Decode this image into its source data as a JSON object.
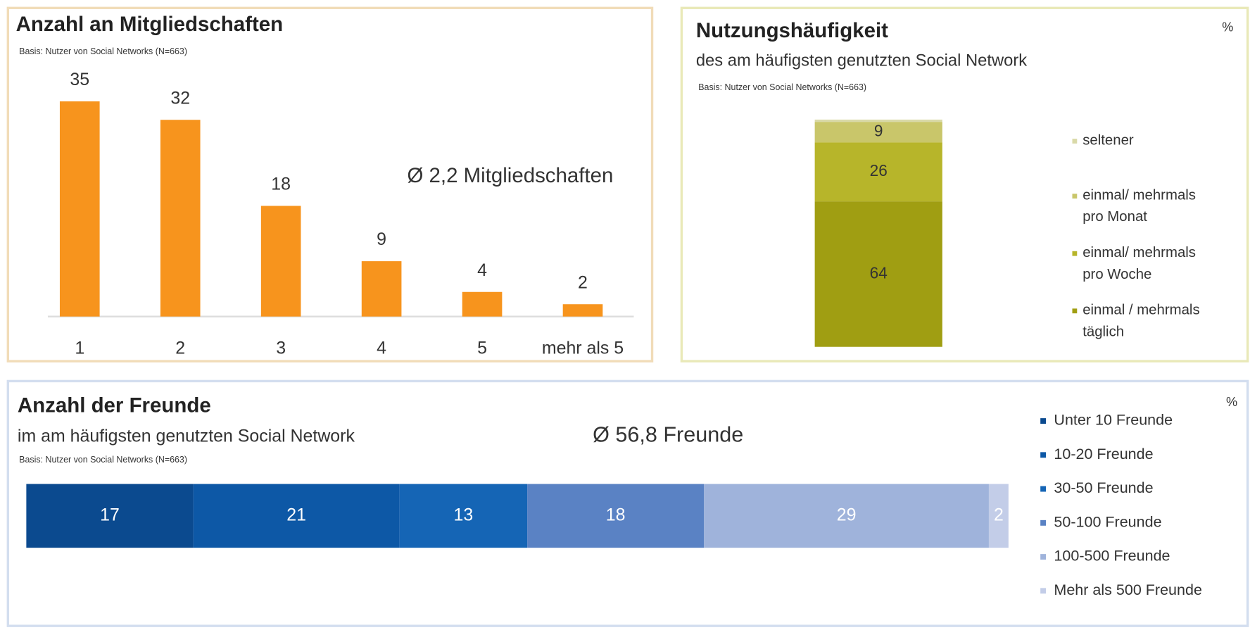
{
  "chart_data": [
    {
      "type": "bar",
      "title": "Anzahl an Mitgliedschaften",
      "subtitle": "Basis: Nutzer von Social Networks (N=663)",
      "annotation": "Ø 2,2 Mitgliedschaften",
      "categories": [
        "1",
        "2",
        "3",
        "4",
        "5",
        "mehr als 5"
      ],
      "values": [
        35,
        32,
        18,
        9,
        4,
        2
      ],
      "color": "#f7941d"
    },
    {
      "type": "stacked-column",
      "title": "Nutzungshäufigkeit",
      "subtitle": "des am häufigsten genutzten Social Network",
      "note": "Basis: Nutzer von Social Networks (N=663)",
      "unit": "%",
      "series": [
        {
          "name": "seltener",
          "color": "#d9d9a8",
          "values": [
            1
          ]
        },
        {
          "name": "einmal/ mehrmals pro Monat",
          "color": "#c9c66a",
          "values": [
            9
          ]
        },
        {
          "name": "einmal/ mehrmals pro Woche",
          "color": "#b7b52a",
          "values": [
            26
          ]
        },
        {
          "name": "einmal / mehrmals täglich",
          "color": "#a09e12",
          "values": [
            64
          ]
        }
      ]
    },
    {
      "type": "stacked-bar",
      "title": "Anzahl der Freunde",
      "subtitle": "im am häufigsten genutzten Social Network",
      "note": "Basis: Nutzer von Social Networks (N=663)",
      "annotation": "Ø 56,8 Freunde",
      "unit": "%",
      "series": [
        {
          "name": "Unter 10 Freunde",
          "color": "#0b4a8f",
          "values": [
            17
          ]
        },
        {
          "name": "10-20 Freunde",
          "color": "#0d58a6",
          "values": [
            21
          ]
        },
        {
          "name": "30-50 Freunde",
          "color": "#1565b5",
          "values": [
            13
          ]
        },
        {
          "name": "50-100 Freunde",
          "color": "#5a82c4",
          "values": [
            18
          ]
        },
        {
          "name": "100-500 Freunde",
          "color": "#9fb3db",
          "values": [
            29
          ]
        },
        {
          "name": "Mehr als 500 Freunde",
          "color": "#c3cde8",
          "values": [
            2
          ]
        }
      ]
    }
  ]
}
